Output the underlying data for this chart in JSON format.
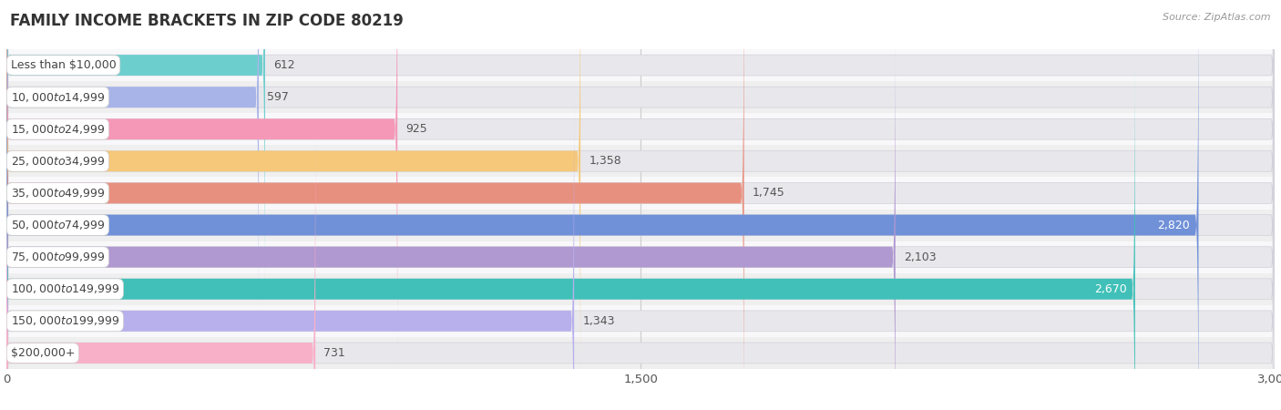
{
  "title": "FAMILY INCOME BRACKETS IN ZIP CODE 80219",
  "source": "Source: ZipAtlas.com",
  "categories": [
    "Less than $10,000",
    "$10,000 to $14,999",
    "$15,000 to $24,999",
    "$25,000 to $34,999",
    "$35,000 to $49,999",
    "$50,000 to $74,999",
    "$75,000 to $99,999",
    "$100,000 to $149,999",
    "$150,000 to $199,999",
    "$200,000+"
  ],
  "values": [
    612,
    597,
    925,
    1358,
    1745,
    2820,
    2103,
    2670,
    1343,
    731
  ],
  "bar_colors": [
    "#6dcece",
    "#a8b4e8",
    "#f598b8",
    "#f5c87a",
    "#e89080",
    "#7090d8",
    "#b098d0",
    "#40c0b8",
    "#b8b0ec",
    "#f8b0c8"
  ],
  "xlim": [
    0,
    3000
  ],
  "xticks": [
    0,
    1500,
    3000
  ],
  "value_inside_threshold": 2500,
  "bar_bg_color": "#e8e8ec",
  "title_fontsize": 12,
  "tick_fontsize": 9.5,
  "label_fontsize": 9,
  "value_fontsize": 9,
  "bar_height": 0.65,
  "row_bg_colors": [
    "#f8f8fa",
    "#efefef"
  ],
  "label_bg_color": "#ffffff",
  "label_text_color": "#444444",
  "value_color_inside": "#ffffff",
  "value_color_outside": "#555555"
}
